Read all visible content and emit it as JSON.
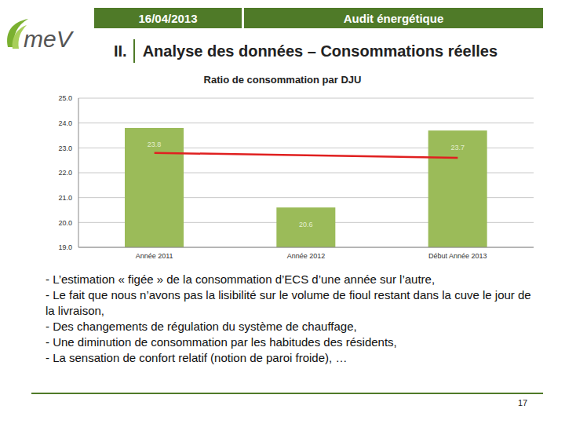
{
  "logo": "meV",
  "header": {
    "date": "16/04/2013",
    "title": "Audit énergétique",
    "section": "II.",
    "heading": "Analyse des données – Consommations réelles"
  },
  "chart_data": {
    "type": "bar",
    "title": "Ratio de consommation par DJU",
    "categories": [
      "Année 2011",
      "Année 2012",
      "Début Année 2013"
    ],
    "series": [
      {
        "type": "bar",
        "color": "#9bbb59",
        "values": [
          23.8,
          20.6,
          23.7
        ],
        "data_labels": true
      },
      {
        "type": "line",
        "color": "#e02020",
        "values": [
          22.8,
          22.7,
          22.6
        ]
      }
    ],
    "ylim": [
      19,
      25
    ],
    "yticks": [
      {
        "value": 19,
        "label": "19.0"
      },
      {
        "value": 20,
        "label": "20.0"
      },
      {
        "value": 21,
        "label": "21.0"
      },
      {
        "value": 22,
        "label": "22.0"
      },
      {
        "value": 23,
        "label": "23.0"
      },
      {
        "value": 24,
        "label": "24.0"
      },
      {
        "value": 25,
        "label": "25.0"
      }
    ],
    "grid": true
  },
  "bullets": [
    "- L’estimation « figée » de la consommation d’ECS d’une année sur l’autre,",
    "- Le fait que nous n’avons pas la lisibilité sur le volume de fioul restant dans la cuve le jour de la livraison,",
    "- Des changements de régulation du système de chauffage,",
    "- Une diminution de consommation par les habitudes des résidents,",
    "- La sensation de confort relatif (notion de paroi froide), …"
  ],
  "page": "17"
}
